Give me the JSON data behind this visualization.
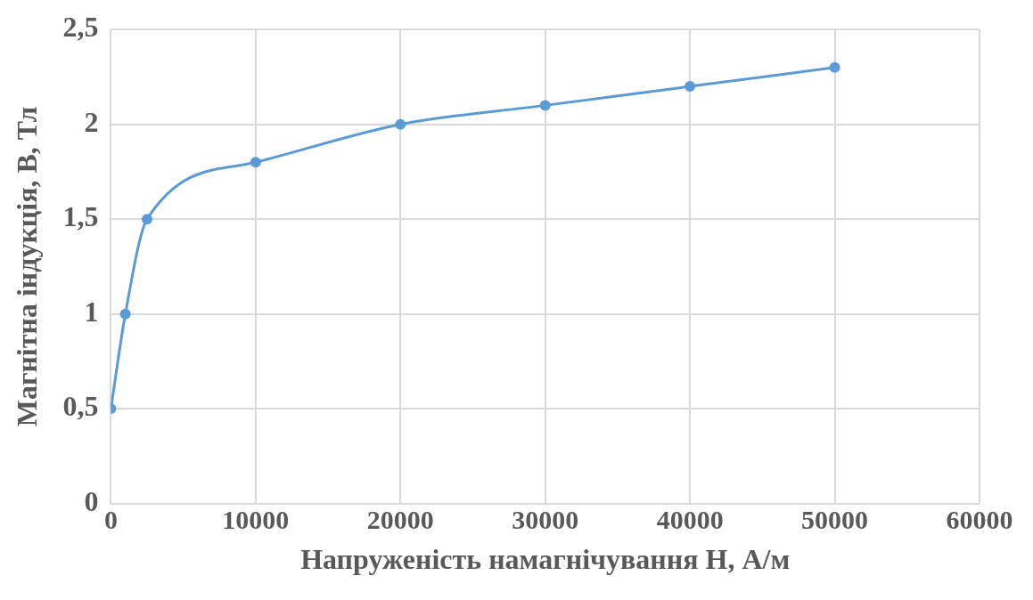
{
  "chart_data": {
    "type": "scatter",
    "xlabel": "Напруженість намагнічування H, А/м",
    "ylabel": "Магнітна індукція, B, Тл",
    "series": [
      {
        "type": "line",
        "color": "#5b9bd5",
        "x": [
          0,
          1000,
          2500,
          10000,
          20000,
          30000,
          40000,
          50000
        ],
        "values": [
          0.5,
          1,
          1.5,
          1.8,
          2,
          2.1,
          2.2,
          2.3
        ]
      }
    ],
    "xlim": [
      0,
      60000
    ],
    "xticks": [
      0,
      10000,
      20000,
      30000,
      40000,
      50000,
      60000
    ],
    "ylim": [
      0,
      2.5
    ],
    "yticks": [
      0,
      {
        "value": 0.5,
        "label": "0,5"
      },
      1,
      {
        "value": 1.5,
        "label": "1,5"
      },
      2,
      {
        "value": 2.5,
        "label": "2,5"
      }
    ],
    "grid": true,
    "legend": false,
    "marker": "circle",
    "line_style": "solid"
  }
}
